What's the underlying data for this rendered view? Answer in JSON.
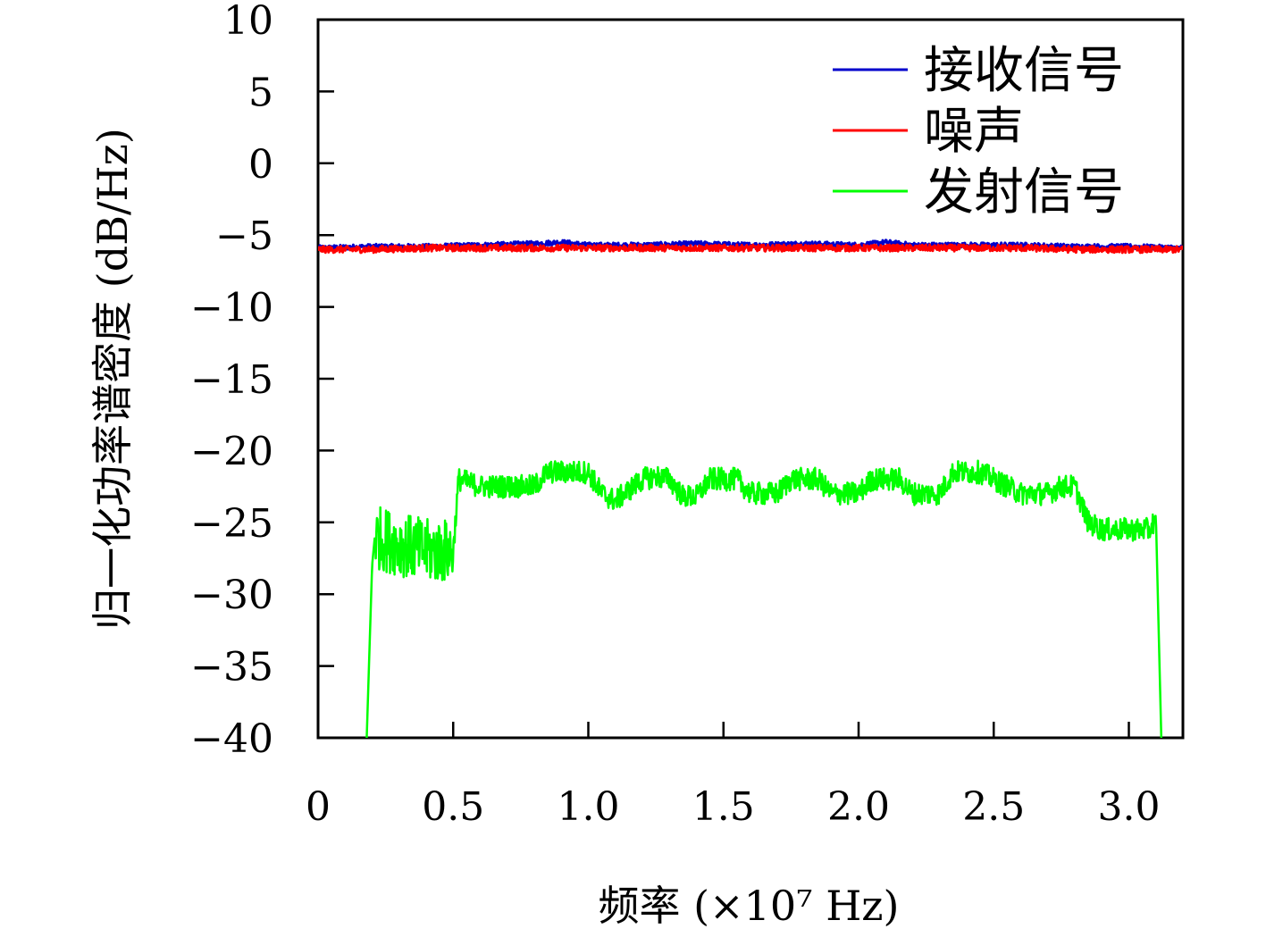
{
  "chart_data": {
    "type": "line",
    "xlabel": "频率 (×10⁷ Hz)",
    "ylabel": "归一化功率谱密度 (dB/Hz)",
    "xlim": [
      0,
      3.2
    ],
    "ylim": [
      -40,
      10
    ],
    "x_ticks": [
      0,
      0.5,
      1.0,
      1.5,
      2.0,
      2.5,
      3.0
    ],
    "x_tick_labels": [
      "0",
      "0.5",
      "1.0",
      "1.5",
      "2.0",
      "2.5",
      "3.0"
    ],
    "y_ticks": [
      10,
      5,
      0,
      -5,
      -10,
      -15,
      -20,
      -25,
      -30,
      -35,
      -40
    ],
    "y_tick_labels": [
      "10",
      "5",
      "0",
      "−5",
      "−10",
      "−15",
      "−20",
      "−25",
      "−30",
      "−35",
      "−40"
    ],
    "grid": false,
    "legend": "top-right",
    "series": [
      {
        "name": "接收信号",
        "color": "#0000cc",
        "x": [
          0,
          0.2,
          0.4,
          0.6,
          0.8,
          0.9,
          1.0,
          1.2,
          1.4,
          1.6,
          1.8,
          2.0,
          2.1,
          2.2,
          2.4,
          2.6,
          2.8,
          3.0,
          3.2
        ],
        "y": [
          -5.9,
          -5.8,
          -5.8,
          -5.7,
          -5.6,
          -5.5,
          -5.7,
          -5.7,
          -5.6,
          -5.7,
          -5.6,
          -5.7,
          -5.5,
          -5.7,
          -5.7,
          -5.7,
          -5.8,
          -5.8,
          -5.9
        ]
      },
      {
        "name": "噪声",
        "color": "#ff0000",
        "x": [
          0,
          0.2,
          0.4,
          0.6,
          0.8,
          1.0,
          1.2,
          1.4,
          1.6,
          1.8,
          2.0,
          2.2,
          2.4,
          2.6,
          2.8,
          3.0,
          3.2
        ],
        "y": [
          -6.0,
          -6.0,
          -5.9,
          -5.9,
          -5.9,
          -5.9,
          -5.9,
          -5.9,
          -5.9,
          -5.9,
          -5.9,
          -5.9,
          -5.9,
          -5.9,
          -6.0,
          -6.0,
          -6.0
        ]
      },
      {
        "name": "发射信号",
        "color": "#00ff00",
        "x": [
          0.18,
          0.2,
          0.21,
          0.3,
          0.4,
          0.5,
          0.52,
          0.6,
          0.7,
          0.8,
          0.85,
          0.95,
          1.0,
          1.05,
          1.1,
          1.2,
          1.25,
          1.3,
          1.35,
          1.4,
          1.45,
          1.55,
          1.6,
          1.7,
          1.75,
          1.85,
          1.9,
          2.0,
          2.05,
          2.15,
          2.2,
          2.3,
          2.35,
          2.45,
          2.5,
          2.6,
          2.7,
          2.75,
          2.8,
          2.85,
          2.9,
          3.0,
          3.08,
          3.1,
          3.12
        ],
        "y": [
          -40,
          -28,
          -26,
          -26.5,
          -27,
          -27,
          -22,
          -22.5,
          -22.5,
          -22.5,
          -21.5,
          -21.5,
          -21.5,
          -23,
          -23.5,
          -22,
          -21.8,
          -22,
          -23.2,
          -23.2,
          -22,
          -22,
          -23,
          -23,
          -22,
          -22,
          -23,
          -23,
          -22,
          -22,
          -23,
          -23,
          -21.5,
          -21.5,
          -22,
          -23,
          -23,
          -22.5,
          -22.5,
          -25,
          -25.5,
          -25.5,
          -25.5,
          -24.5,
          -40
        ]
      }
    ]
  }
}
